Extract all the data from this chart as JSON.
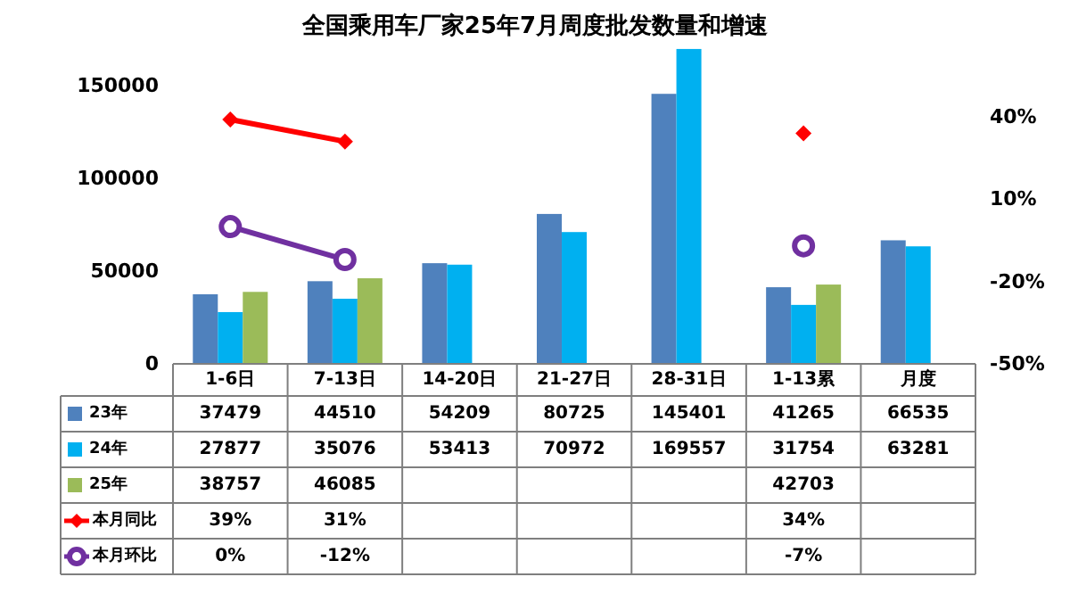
{
  "chart_data": {
    "type": "bar",
    "title": "全国乘用车厂家25年7月周度批发数量和增速",
    "categories": [
      "1-6日",
      "7-13日",
      "14-20日",
      "21-27日",
      "28-31日",
      "1-13累",
      "月度"
    ],
    "ylim": [
      0,
      170000
    ],
    "yticks": [
      0,
      50000,
      100000,
      150000
    ],
    "y2lim": [
      -50,
      65
    ],
    "y2ticks": [
      {
        "value": -50,
        "label": "-50%"
      },
      {
        "value": -20,
        "label": "-20%"
      },
      {
        "value": 10,
        "label": "10%"
      },
      {
        "value": 40,
        "label": "40%"
      }
    ],
    "legend": "bottom",
    "series": [
      {
        "name": "23年",
        "color": "#4f81bd",
        "values": [
          37479,
          44510,
          54209,
          80725,
          145401,
          41265,
          66535
        ],
        "value_labels": [
          "37479",
          "44510",
          "54209",
          "80725",
          "145401",
          "41265",
          "66535"
        ]
      },
      {
        "name": "24年",
        "color": "#00b0f0",
        "values": [
          27877,
          35076,
          53413,
          70972,
          169557,
          31754,
          63281
        ],
        "value_labels": [
          "27877",
          "35076",
          "53413",
          "70972",
          "169557",
          "31754",
          "63281"
        ]
      },
      {
        "name": "25年",
        "color": "#9bbb59",
        "values": [
          38757,
          46085,
          null,
          null,
          null,
          42703,
          null
        ],
        "value_labels": [
          "38757",
          "46085",
          null,
          null,
          null,
          "42703",
          null
        ]
      },
      {
        "name": "本月同比",
        "type": "line",
        "axis": "y2",
        "color": "#ff0000",
        "marker": "diamond",
        "values": [
          39,
          31,
          null,
          null,
          null,
          34,
          null
        ],
        "value_labels": [
          "39%",
          "31%",
          null,
          null,
          null,
          "34%",
          null
        ]
      },
      {
        "name": "本月环比",
        "type": "line",
        "axis": "y2",
        "color": "#7030a0",
        "marker": "circle",
        "values": [
          0,
          -12,
          null,
          null,
          null,
          -7,
          null
        ],
        "value_labels": [
          "0%",
          "-12%",
          null,
          null,
          null,
          "-7%",
          null
        ]
      }
    ]
  }
}
